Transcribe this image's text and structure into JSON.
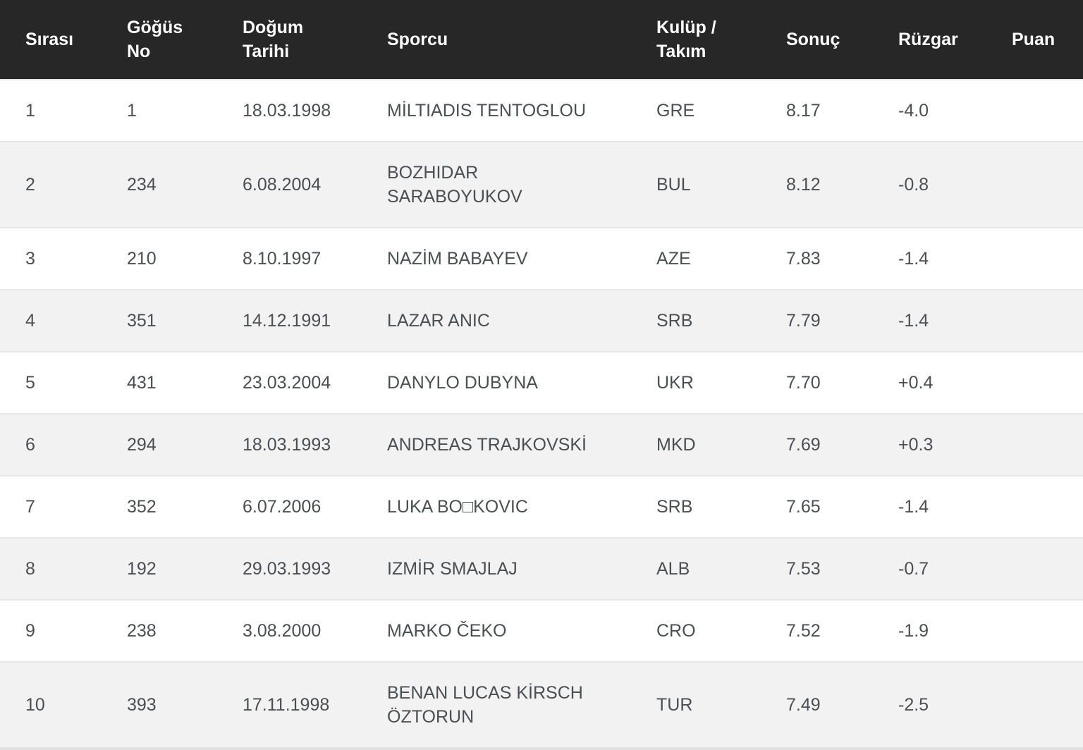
{
  "theme": {
    "header_bg": "#272727",
    "header_text": "#ffffff",
    "row_bg": "#ffffff",
    "row_alt_bg": "#f2f2f2",
    "body_text": "#4a4f54",
    "row_border": "#e7e7e7"
  },
  "table": {
    "columns": [
      {
        "key": "rank",
        "label": "Sırası"
      },
      {
        "key": "bib",
        "label": "Göğüs\nNo"
      },
      {
        "key": "dob",
        "label": "Doğum\nTarihi"
      },
      {
        "key": "athlete",
        "label": "Sporcu"
      },
      {
        "key": "team",
        "label": "Kulüp /\nTakım"
      },
      {
        "key": "result",
        "label": "Sonuç"
      },
      {
        "key": "wind",
        "label": "Rüzgar"
      },
      {
        "key": "points",
        "label": "Puan"
      }
    ],
    "rows": [
      {
        "rank": "1",
        "bib": "1",
        "dob": "18.03.1998",
        "athlete": "MİLTIADIS TENTOGLOU",
        "team": "GRE",
        "result": "8.17",
        "wind": "-4.0",
        "points": ""
      },
      {
        "rank": "2",
        "bib": "234",
        "dob": "6.08.2004",
        "athlete": "BOZHIDAR\nSARABOYUKOV",
        "team": "BUL",
        "result": "8.12",
        "wind": "-0.8",
        "points": ""
      },
      {
        "rank": "3",
        "bib": "210",
        "dob": "8.10.1997",
        "athlete": "NAZİM BABAYEV",
        "team": "AZE",
        "result": "7.83",
        "wind": "-1.4",
        "points": ""
      },
      {
        "rank": "4",
        "bib": "351",
        "dob": "14.12.1991",
        "athlete": "LAZAR ANIC",
        "team": "SRB",
        "result": "7.79",
        "wind": "-1.4",
        "points": ""
      },
      {
        "rank": "5",
        "bib": "431",
        "dob": "23.03.2004",
        "athlete": "DANYLO DUBYNA",
        "team": "UKR",
        "result": "7.70",
        "wind": "+0.4",
        "points": ""
      },
      {
        "rank": "6",
        "bib": "294",
        "dob": "18.03.1993",
        "athlete": "ANDREAS TRAJKOVSKİ",
        "team": "MKD",
        "result": "7.69",
        "wind": "+0.3",
        "points": ""
      },
      {
        "rank": "7",
        "bib": "352",
        "dob": "6.07.2006",
        "athlete": "LUKA BO□KOVIC",
        "team": "SRB",
        "result": "7.65",
        "wind": "-1.4",
        "points": ""
      },
      {
        "rank": "8",
        "bib": "192",
        "dob": "29.03.1993",
        "athlete": "IZMİR SMAJLAJ",
        "team": "ALB",
        "result": "7.53",
        "wind": "-0.7",
        "points": ""
      },
      {
        "rank": "9",
        "bib": "238",
        "dob": "3.08.2000",
        "athlete": "MARKO ČEKO",
        "team": "CRO",
        "result": "7.52",
        "wind": "-1.9",
        "points": ""
      },
      {
        "rank": "10",
        "bib": "393",
        "dob": "17.11.1998",
        "athlete": "BENAN LUCAS KİRSCH\nÖZTORUN",
        "team": "TUR",
        "result": "7.49",
        "wind": "-2.5",
        "points": ""
      }
    ]
  }
}
